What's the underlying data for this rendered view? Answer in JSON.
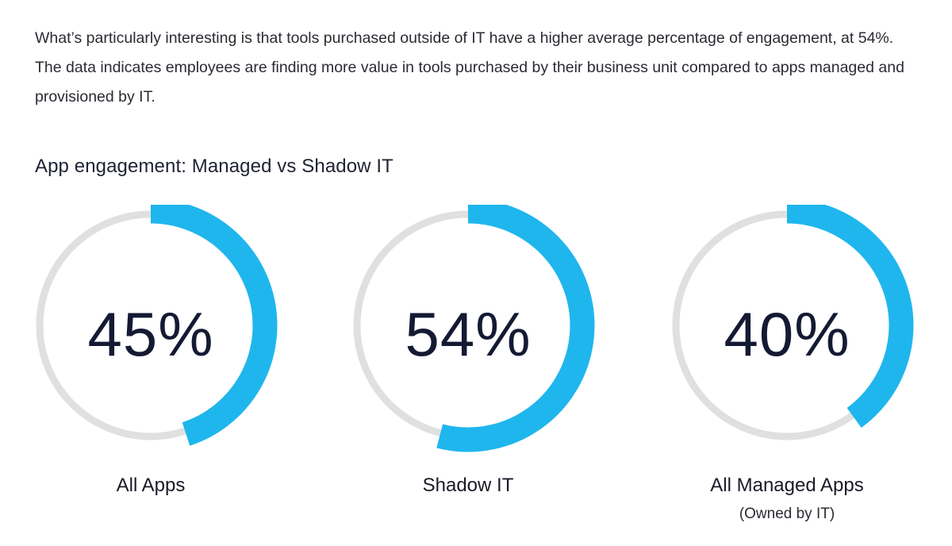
{
  "intro_text": "What’s particularly interesting is that tools purchased outside of IT have a higher average percentage of engagement, at 54%. The data indicates employees are finding more value in tools purchased by their business unit compared to apps managed and provisioned by IT.",
  "chart_data": {
    "type": "pie",
    "title": "App engagement: Managed vs Shadow IT",
    "unit": "%",
    "max": 100,
    "colors": {
      "value": "#1fb6ee",
      "track": "#e0e0e0"
    },
    "items": [
      {
        "label": "All Apps",
        "sublabel": "",
        "value": 45,
        "display": "45%"
      },
      {
        "label": "Shadow IT",
        "sublabel": "",
        "value": 54,
        "display": "54%"
      },
      {
        "label": "All Managed Apps",
        "sublabel": "(Owned by IT)",
        "value": 40,
        "display": "40%"
      }
    ]
  }
}
